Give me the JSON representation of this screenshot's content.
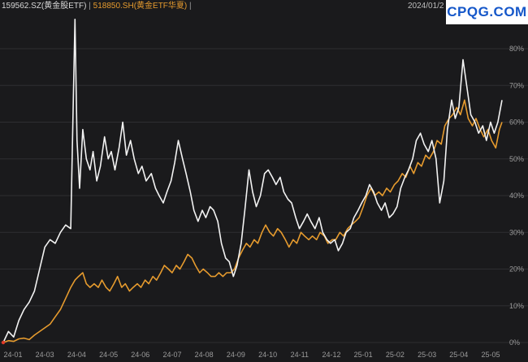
{
  "legend": {
    "series1": "159562.SZ(黄金股ETF)",
    "separator": "|",
    "series2": "518850.SH(黄金ETF华夏)",
    "separator2": "|",
    "date": "2024/01/2"
  },
  "watermark": "CPQG.COM",
  "colors": {
    "background": "#1a1a1c",
    "series1": "#f2f2f2",
    "series2": "#e69b2e",
    "grid": "#2e2e31"
  },
  "chart_data": {
    "type": "line",
    "x_ticks": [
      "24-01",
      "24-03",
      "24-04",
      "24-05",
      "24-06",
      "24-07",
      "24-08",
      "24-09",
      "24-10",
      "24-11",
      "24-12",
      "25-01",
      "25-02",
      "25-03",
      "25-04",
      "25-05"
    ],
    "y_ticks": [
      "0%",
      "10%",
      "20%",
      "30%",
      "40%",
      "50%",
      "60%",
      "70%",
      "80%"
    ],
    "ylim": [
      0,
      85
    ],
    "grid": "horizontal",
    "series": [
      {
        "name": "159562.SZ(黄金股ETF)",
        "color": "#f2f2f2",
        "points": [
          [
            0,
            0
          ],
          [
            1,
            3
          ],
          [
            2,
            1.5
          ],
          [
            3,
            6
          ],
          [
            4,
            9
          ],
          [
            5,
            11
          ],
          [
            6,
            14
          ],
          [
            7,
            20
          ],
          [
            8,
            26
          ],
          [
            9,
            28
          ],
          [
            10,
            27
          ],
          [
            11,
            30
          ],
          [
            12,
            32
          ],
          [
            13,
            31
          ],
          [
            13.4,
            60
          ],
          [
            13.8,
            88
          ],
          [
            14.2,
            55
          ],
          [
            14.7,
            42
          ],
          [
            15.3,
            58
          ],
          [
            16,
            50
          ],
          [
            16.7,
            47
          ],
          [
            17.3,
            52
          ],
          [
            18,
            44
          ],
          [
            18.7,
            48
          ],
          [
            19.5,
            56
          ],
          [
            20.2,
            50
          ],
          [
            20.8,
            52
          ],
          [
            21.5,
            47
          ],
          [
            22.3,
            53
          ],
          [
            23,
            60
          ],
          [
            23.7,
            51
          ],
          [
            24.5,
            55
          ],
          [
            25.2,
            50
          ],
          [
            26,
            46
          ],
          [
            26.7,
            48
          ],
          [
            27.5,
            44
          ],
          [
            28.5,
            46
          ],
          [
            29.3,
            42
          ],
          [
            30,
            40
          ],
          [
            30.8,
            38
          ],
          [
            31.5,
            41
          ],
          [
            32.3,
            44
          ],
          [
            33,
            49
          ],
          [
            33.7,
            55
          ],
          [
            34.5,
            50
          ],
          [
            35.2,
            46
          ],
          [
            36,
            41
          ],
          [
            36.7,
            36
          ],
          [
            37.5,
            33
          ],
          [
            38.3,
            36
          ],
          [
            39,
            34
          ],
          [
            39.8,
            37
          ],
          [
            40.5,
            36
          ],
          [
            41.3,
            33
          ],
          [
            42,
            27
          ],
          [
            42.8,
            23
          ],
          [
            43.5,
            22
          ],
          [
            44.3,
            18
          ],
          [
            45,
            21
          ],
          [
            45.8,
            27
          ],
          [
            46.5,
            36
          ],
          [
            47.3,
            47
          ],
          [
            48,
            41
          ],
          [
            48.7,
            37
          ],
          [
            49.5,
            40
          ],
          [
            50.3,
            46
          ],
          [
            51,
            47
          ],
          [
            51.8,
            45
          ],
          [
            52.5,
            43
          ],
          [
            53.3,
            45
          ],
          [
            54,
            41
          ],
          [
            54.8,
            39
          ],
          [
            55.5,
            38
          ],
          [
            56.3,
            34
          ],
          [
            57,
            31
          ],
          [
            57.8,
            33
          ],
          [
            58.5,
            35
          ],
          [
            59.2,
            33
          ],
          [
            60,
            31
          ],
          [
            60.8,
            34
          ],
          [
            61.5,
            30
          ],
          [
            62.3,
            28
          ],
          [
            63,
            27
          ],
          [
            63.8,
            28
          ],
          [
            64.5,
            25
          ],
          [
            65.3,
            27
          ],
          [
            66,
            30
          ],
          [
            66.8,
            31
          ],
          [
            67.5,
            34
          ],
          [
            68.3,
            36
          ],
          [
            69,
            38
          ],
          [
            69.8,
            40
          ],
          [
            70.5,
            43
          ],
          [
            71.3,
            41
          ],
          [
            72,
            38
          ],
          [
            72.8,
            36
          ],
          [
            73.5,
            38
          ],
          [
            74.3,
            34
          ],
          [
            75,
            35
          ],
          [
            75.8,
            37
          ],
          [
            76.5,
            42
          ],
          [
            77.3,
            45
          ],
          [
            78,
            47
          ],
          [
            78.8,
            50
          ],
          [
            79.5,
            55
          ],
          [
            80.3,
            57
          ],
          [
            81,
            54
          ],
          [
            81.8,
            52
          ],
          [
            82.5,
            55
          ],
          [
            83.3,
            50
          ],
          [
            84,
            38
          ],
          [
            84.8,
            44
          ],
          [
            85.5,
            58
          ],
          [
            86.3,
            66
          ],
          [
            87,
            61
          ],
          [
            87.7,
            64
          ],
          [
            88.5,
            77
          ],
          [
            89.2,
            70
          ],
          [
            90,
            62
          ],
          [
            90.8,
            60
          ],
          [
            91.5,
            57
          ],
          [
            92.3,
            59
          ],
          [
            93,
            55
          ],
          [
            93.8,
            60
          ],
          [
            94.5,
            57
          ],
          [
            95.2,
            60
          ],
          [
            96,
            66
          ]
        ]
      },
      {
        "name": "518850.SH(黄金ETF华夏)",
        "color": "#e69b2e",
        "points": [
          [
            0,
            0
          ],
          [
            1,
            0.5
          ],
          [
            2,
            0.3
          ],
          [
            3,
            1
          ],
          [
            4,
            1.2
          ],
          [
            5,
            0.8
          ],
          [
            6,
            2
          ],
          [
            7,
            3
          ],
          [
            8,
            4
          ],
          [
            9,
            5
          ],
          [
            10,
            7
          ],
          [
            11,
            9
          ],
          [
            12,
            12
          ],
          [
            13,
            15
          ],
          [
            13.8,
            17
          ],
          [
            14.5,
            18
          ],
          [
            15.3,
            19
          ],
          [
            16,
            16
          ],
          [
            16.7,
            15
          ],
          [
            17.5,
            16
          ],
          [
            18.3,
            15
          ],
          [
            19,
            17
          ],
          [
            19.8,
            15
          ],
          [
            20.5,
            14
          ],
          [
            21.3,
            16
          ],
          [
            22,
            18
          ],
          [
            22.8,
            15
          ],
          [
            23.5,
            16
          ],
          [
            24.3,
            14
          ],
          [
            25,
            15
          ],
          [
            25.8,
            16
          ],
          [
            26.5,
            15
          ],
          [
            27.3,
            17
          ],
          [
            28,
            16
          ],
          [
            28.8,
            18
          ],
          [
            29.5,
            17
          ],
          [
            30.3,
            19
          ],
          [
            31,
            21
          ],
          [
            31.8,
            20
          ],
          [
            32.5,
            19
          ],
          [
            33.3,
            21
          ],
          [
            34,
            20
          ],
          [
            34.8,
            22
          ],
          [
            35.5,
            24
          ],
          [
            36.3,
            23
          ],
          [
            37,
            21
          ],
          [
            37.8,
            19
          ],
          [
            38.5,
            20
          ],
          [
            39.3,
            19
          ],
          [
            40,
            18
          ],
          [
            40.8,
            18
          ],
          [
            41.5,
            19
          ],
          [
            42.3,
            18
          ],
          [
            43,
            19
          ],
          [
            43.8,
            19
          ],
          [
            44.5,
            20
          ],
          [
            45.3,
            23
          ],
          [
            46,
            25
          ],
          [
            46.8,
            27
          ],
          [
            47.5,
            26
          ],
          [
            48.3,
            28
          ],
          [
            49,
            27
          ],
          [
            49.8,
            30
          ],
          [
            50.5,
            32
          ],
          [
            51.3,
            30
          ],
          [
            52,
            29
          ],
          [
            52.8,
            31
          ],
          [
            53.5,
            30
          ],
          [
            54.3,
            28
          ],
          [
            55,
            26
          ],
          [
            55.8,
            28
          ],
          [
            56.5,
            27
          ],
          [
            57.3,
            30
          ],
          [
            58,
            29
          ],
          [
            58.8,
            28
          ],
          [
            59.5,
            29
          ],
          [
            60.3,
            28
          ],
          [
            61,
            30
          ],
          [
            61.8,
            29
          ],
          [
            62.5,
            27
          ],
          [
            63.3,
            28
          ],
          [
            64,
            28
          ],
          [
            64.8,
            30
          ],
          [
            65.5,
            29
          ],
          [
            66.3,
            31
          ],
          [
            67,
            32
          ],
          [
            67.8,
            33
          ],
          [
            68.5,
            34
          ],
          [
            69.3,
            37
          ],
          [
            70,
            40
          ],
          [
            70.8,
            42
          ],
          [
            71.5,
            40
          ],
          [
            72.3,
            41
          ],
          [
            73,
            40
          ],
          [
            73.8,
            42
          ],
          [
            74.5,
            41
          ],
          [
            75.3,
            43
          ],
          [
            76,
            44
          ],
          [
            76.8,
            46
          ],
          [
            77.5,
            45
          ],
          [
            78.3,
            48
          ],
          [
            79,
            46
          ],
          [
            79.8,
            49
          ],
          [
            80.5,
            48
          ],
          [
            81.3,
            51
          ],
          [
            82,
            50
          ],
          [
            82.8,
            52
          ],
          [
            83.5,
            55
          ],
          [
            84.3,
            54
          ],
          [
            85,
            59
          ],
          [
            85.8,
            61
          ],
          [
            86.5,
            62
          ],
          [
            87.3,
            64
          ],
          [
            88,
            62
          ],
          [
            88.8,
            66
          ],
          [
            89.5,
            61
          ],
          [
            90.3,
            59
          ],
          [
            91,
            61
          ],
          [
            91.8,
            58
          ],
          [
            92.5,
            56
          ],
          [
            93.3,
            58
          ],
          [
            94,
            55
          ],
          [
            94.8,
            53
          ],
          [
            95.5,
            58
          ],
          [
            96,
            60
          ]
        ]
      }
    ]
  }
}
